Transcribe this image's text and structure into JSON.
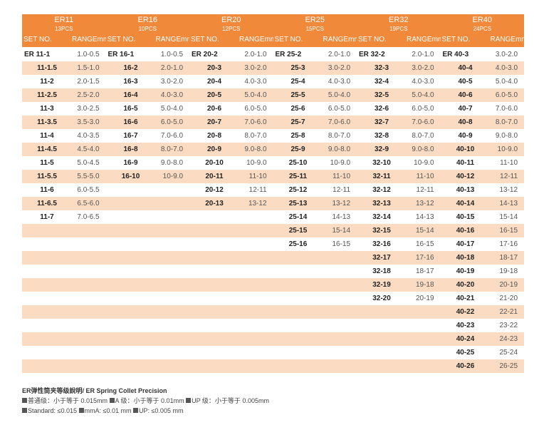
{
  "groups": [
    {
      "name": "ER11",
      "pcs": "13PCS",
      "set_label": "SET NO.",
      "range_label": "RANGEmm"
    },
    {
      "name": "ER16",
      "pcs": "10PCS",
      "set_label": "SET NO.",
      "range_label": "RANGEmm"
    },
    {
      "name": "ER20",
      "pcs": "12PCS",
      "set_label": "SET NO.",
      "range_label": "RANGEmm"
    },
    {
      "name": "ER25",
      "pcs": "15PCS",
      "set_label": "SET NO.",
      "range_label": "RANGEmm"
    },
    {
      "name": "ER32",
      "pcs": "19PCS",
      "set_label": "SET NO.",
      "range_label": "RANGEmm"
    },
    {
      "name": "ER40",
      "pcs": "24PCS",
      "set_label": "SET NO.",
      "range_label": "RANGEmm"
    }
  ],
  "rows": [
    [
      [
        "ER 11-1",
        "1.0-0.5"
      ],
      [
        "ER 16-1",
        "1.0-0.5"
      ],
      [
        "ER 20-2",
        "2.0-1.0"
      ],
      [
        "ER 25-2",
        "2.0-1.0"
      ],
      [
        "ER 32-2",
        "2.0-1.0"
      ],
      [
        "ER 40-3",
        "3.0-2.0"
      ]
    ],
    [
      [
        "11-1.5",
        "1.5-1.0"
      ],
      [
        "16-2",
        "2.0-1.0"
      ],
      [
        "20-3",
        "3.0-2.0"
      ],
      [
        "25-3",
        "3.0-2.0"
      ],
      [
        "32-3",
        "3.0-2.0"
      ],
      [
        "40-4",
        "4.0-3.0"
      ]
    ],
    [
      [
        "11-2",
        "2.0-1.5"
      ],
      [
        "16-3",
        "3.0-2.0"
      ],
      [
        "20-4",
        "4.0-3.0"
      ],
      [
        "25-4",
        "4.0-3.0"
      ],
      [
        "32-4",
        "4.0-3.0"
      ],
      [
        "40-5",
        "5.0-4.0"
      ]
    ],
    [
      [
        "11-2.5",
        "2.5-2.0"
      ],
      [
        "16-4",
        "4.0-3.0"
      ],
      [
        "20-5",
        "5.0-4.0"
      ],
      [
        "25-5",
        "5.0-4.0"
      ],
      [
        "32-5",
        "5.0-4.0"
      ],
      [
        "40-6",
        "6.0-5.0"
      ]
    ],
    [
      [
        "11-3",
        "3.0-2.5"
      ],
      [
        "16-5",
        "5.0-4.0"
      ],
      [
        "20-6",
        "6.0-5.0"
      ],
      [
        "25-6",
        "6.0-5.0"
      ],
      [
        "32-6",
        "6.0-5.0"
      ],
      [
        "40-7",
        "7.0-6.0"
      ]
    ],
    [
      [
        "11-3.5",
        "3.5-3.0"
      ],
      [
        "16-6",
        "6.0-5.0"
      ],
      [
        "20-7",
        "7.0-6.0"
      ],
      [
        "25-7",
        "7.0-6.0"
      ],
      [
        "32-7",
        "7.0-6.0"
      ],
      [
        "40-8",
        "8.0-7.0"
      ]
    ],
    [
      [
        "11-4",
        "4.0-3.5"
      ],
      [
        "16-7",
        "7.0-6.0"
      ],
      [
        "20-8",
        "8.0-7.0"
      ],
      [
        "25-8",
        "8.0-7.0"
      ],
      [
        "32-8",
        "8.0-7.0"
      ],
      [
        "40-9",
        "9.0-8.0"
      ]
    ],
    [
      [
        "11-4.5",
        "4.5-4.0"
      ],
      [
        "16-8",
        "8.0-7.0"
      ],
      [
        "20-9",
        "9.0-8.0"
      ],
      [
        "25-9",
        "9.0-8.0"
      ],
      [
        "32-9",
        "9.0-8.0"
      ],
      [
        "40-10",
        "10-9.0"
      ]
    ],
    [
      [
        "11-5",
        "5.0-4.5"
      ],
      [
        "16-9",
        "9.0-8.0"
      ],
      [
        "20-10",
        "10-9.0"
      ],
      [
        "25-10",
        "10-9.0"
      ],
      [
        "32-10",
        "10-9.0"
      ],
      [
        "40-11",
        "11-10"
      ]
    ],
    [
      [
        "11-5.5",
        "5.5-5.0"
      ],
      [
        "16-10",
        "10-9.0"
      ],
      [
        "20-11",
        "11-10"
      ],
      [
        "25-11",
        "11-10"
      ],
      [
        "32-11",
        "11-10"
      ],
      [
        "40-12",
        "12-11"
      ]
    ],
    [
      [
        "11-6",
        "6.0-5.5"
      ],
      [
        "",
        ""
      ],
      [
        "20-12",
        "12-11"
      ],
      [
        "25-12",
        "12-11"
      ],
      [
        "32-12",
        "12-11"
      ],
      [
        "40-13",
        "13-12"
      ]
    ],
    [
      [
        "11-6.5",
        "6.5-6.0"
      ],
      [
        "",
        ""
      ],
      [
        "20-13",
        "13-12"
      ],
      [
        "25-13",
        "13-12"
      ],
      [
        "32-13",
        "13-12"
      ],
      [
        "40-14",
        "14-13"
      ]
    ],
    [
      [
        "11-7",
        "7.0-6.5"
      ],
      [
        "",
        ""
      ],
      [
        "",
        ""
      ],
      [
        "25-14",
        "14-13"
      ],
      [
        "32-14",
        "14-13"
      ],
      [
        "40-15",
        "15-14"
      ]
    ],
    [
      [
        "",
        ""
      ],
      [
        "",
        ""
      ],
      [
        "",
        ""
      ],
      [
        "25-15",
        "15-14"
      ],
      [
        "32-15",
        "15-14"
      ],
      [
        "40-16",
        "16-15"
      ]
    ],
    [
      [
        "",
        ""
      ],
      [
        "",
        ""
      ],
      [
        "",
        ""
      ],
      [
        "25-16",
        "16-15"
      ],
      [
        "32-16",
        "16-15"
      ],
      [
        "40-17",
        "17-16"
      ]
    ],
    [
      [
        "",
        ""
      ],
      [
        "",
        ""
      ],
      [
        "",
        ""
      ],
      [
        "",
        ""
      ],
      [
        "32-17",
        "17-16"
      ],
      [
        "40-18",
        "18-17"
      ]
    ],
    [
      [
        "",
        ""
      ],
      [
        "",
        ""
      ],
      [
        "",
        ""
      ],
      [
        "",
        ""
      ],
      [
        "32-18",
        "18-17"
      ],
      [
        "40-19",
        "19-18"
      ]
    ],
    [
      [
        "",
        ""
      ],
      [
        "",
        ""
      ],
      [
        "",
        ""
      ],
      [
        "",
        ""
      ],
      [
        "32-19",
        "19-18"
      ],
      [
        "40-20",
        "20-19"
      ]
    ],
    [
      [
        "",
        ""
      ],
      [
        "",
        ""
      ],
      [
        "",
        ""
      ],
      [
        "",
        ""
      ],
      [
        "32-20",
        "20-19"
      ],
      [
        "40-21",
        "21-20"
      ]
    ],
    [
      [
        "",
        ""
      ],
      [
        "",
        ""
      ],
      [
        "",
        ""
      ],
      [
        "",
        ""
      ],
      [
        "",
        ""
      ],
      [
        "40-22",
        "22-21"
      ]
    ],
    [
      [
        "",
        ""
      ],
      [
        "",
        ""
      ],
      [
        "",
        ""
      ],
      [
        "",
        ""
      ],
      [
        "",
        ""
      ],
      [
        "40-23",
        "23-22"
      ]
    ],
    [
      [
        "",
        ""
      ],
      [
        "",
        ""
      ],
      [
        "",
        ""
      ],
      [
        "",
        ""
      ],
      [
        "",
        ""
      ],
      [
        "40-24",
        "24-23"
      ]
    ],
    [
      [
        "",
        ""
      ],
      [
        "",
        ""
      ],
      [
        "",
        ""
      ],
      [
        "",
        ""
      ],
      [
        "",
        ""
      ],
      [
        "40-25",
        "25-24"
      ]
    ],
    [
      [
        "",
        ""
      ],
      [
        "",
        ""
      ],
      [
        "",
        ""
      ],
      [
        "",
        ""
      ],
      [
        "",
        ""
      ],
      [
        "40-26",
        "26-25"
      ]
    ]
  ],
  "notes": {
    "title": "ER弹性筒夹等级說明/ ER Spring Collet Precision",
    "line_cn": [
      "普通级：小于等于 0.015mm",
      "A 级：小于等于 0.01mm",
      "UP 级：小于等于 0.005mm"
    ],
    "line_en": [
      "Standard: ≤0.015",
      "mmA: ≤0.01 mm",
      "UP: ≤0.005 mm"
    ]
  },
  "colors": {
    "header": "#f0893a",
    "alt_row": "#fbdcc2",
    "text": "#333333"
  }
}
